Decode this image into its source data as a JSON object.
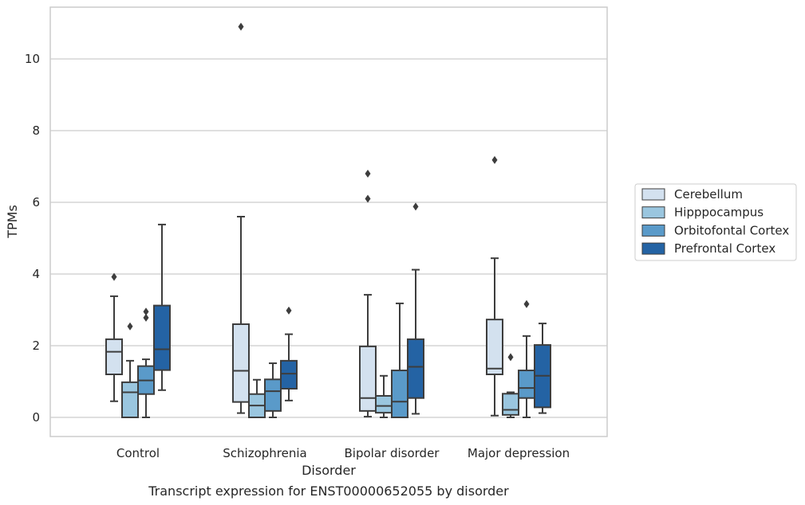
{
  "chart_data": {
    "type": "box",
    "title": "",
    "caption": "Transcript expression for ENST00000652055 by disorder",
    "xlabel": "Disorder",
    "ylabel": "TPMs",
    "categories": [
      "Control",
      "Schizophrenia",
      "Bipolar disorder",
      "Major depression"
    ],
    "y_ticks": [
      0,
      2,
      4,
      6,
      8,
      10
    ],
    "ylim": [
      -0.5,
      11.4
    ],
    "grid": "horizontal",
    "legend_position": "right",
    "series": [
      {
        "name": "Cerebellum",
        "color": "#d3e1ef",
        "boxes": [
          {
            "whisker_low": 0.45,
            "q1": 1.2,
            "median": 1.83,
            "q3": 2.18,
            "whisker_high": 3.38,
            "outliers": [
              3.92
            ]
          },
          {
            "whisker_low": 0.12,
            "q1": 0.43,
            "median": 1.3,
            "q3": 2.6,
            "whisker_high": 5.6,
            "outliers": [
              10.9
            ]
          },
          {
            "whisker_low": 0.02,
            "q1": 0.18,
            "median": 0.54,
            "q3": 1.98,
            "whisker_high": 3.42,
            "outliers": [
              6.1,
              6.8
            ]
          },
          {
            "whisker_low": 0.05,
            "q1": 1.2,
            "median": 1.36,
            "q3": 2.73,
            "whisker_high": 4.44,
            "outliers": [
              7.18
            ]
          }
        ]
      },
      {
        "name": "Hipppocampus",
        "color": "#9ac6df",
        "boxes": [
          {
            "whisker_low": 0.0,
            "q1": 0.0,
            "median": 0.7,
            "q3": 0.98,
            "whisker_high": 1.58,
            "outliers": [
              2.54
            ]
          },
          {
            "whisker_low": 0.0,
            "q1": 0.0,
            "median": 0.33,
            "q3": 0.65,
            "whisker_high": 1.05,
            "outliers": []
          },
          {
            "whisker_low": 0.0,
            "q1": 0.13,
            "median": 0.32,
            "q3": 0.6,
            "whisker_high": 1.16,
            "outliers": []
          },
          {
            "whisker_low": 0.0,
            "q1": 0.07,
            "median": 0.21,
            "q3": 0.66,
            "whisker_high": 0.7,
            "outliers": [
              1.68
            ]
          }
        ]
      },
      {
        "name": "Orbitofontal Cortex",
        "color": "#5a9ac9",
        "boxes": [
          {
            "whisker_low": 0.0,
            "q1": 0.65,
            "median": 1.03,
            "q3": 1.43,
            "whisker_high": 1.62,
            "outliers": [
              2.78,
              2.95
            ]
          },
          {
            "whisker_low": 0.0,
            "q1": 0.18,
            "median": 0.73,
            "q3": 1.06,
            "whisker_high": 1.51,
            "outliers": []
          },
          {
            "whisker_low": 0.0,
            "q1": 0.0,
            "median": 0.44,
            "q3": 1.31,
            "whisker_high": 3.18,
            "outliers": []
          },
          {
            "whisker_low": 0.0,
            "q1": 0.54,
            "median": 0.82,
            "q3": 1.31,
            "whisker_high": 2.27,
            "outliers": [
              3.16
            ]
          }
        ]
      },
      {
        "name": "Prefrontal Cortex",
        "color": "#2463a4",
        "boxes": [
          {
            "whisker_low": 0.76,
            "q1": 1.32,
            "median": 1.9,
            "q3": 3.12,
            "whisker_high": 5.38,
            "outliers": []
          },
          {
            "whisker_low": 0.47,
            "q1": 0.8,
            "median": 1.22,
            "q3": 1.58,
            "whisker_high": 2.32,
            "outliers": [
              2.98
            ]
          },
          {
            "whisker_low": 0.1,
            "q1": 0.54,
            "median": 1.41,
            "q3": 2.18,
            "whisker_high": 4.12,
            "outliers": [
              5.88
            ]
          },
          {
            "whisker_low": 0.12,
            "q1": 0.28,
            "median": 1.16,
            "q3": 2.02,
            "whisker_high": 2.62,
            "outliers": []
          }
        ]
      }
    ]
  }
}
